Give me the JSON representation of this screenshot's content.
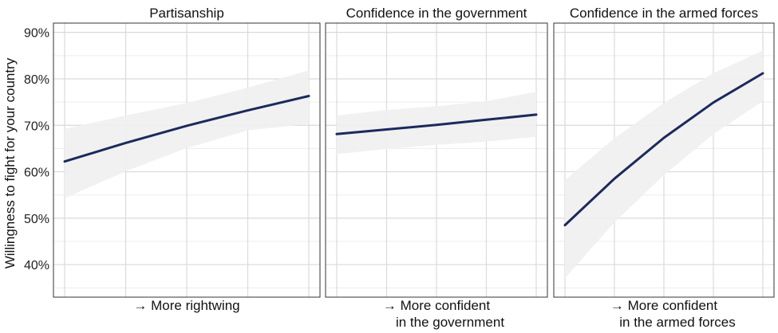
{
  "chart_data": {
    "type": "line",
    "ylabel": "Willingness to fight for your country",
    "ylim": [
      0.33,
      0.92
    ],
    "yticks": [
      "40%",
      "50%",
      "60%",
      "70%",
      "80%",
      "90%"
    ],
    "ytick_values": [
      0.4,
      0.5,
      0.6,
      0.7,
      0.8,
      0.9
    ],
    "grid": true,
    "line_color": "#1b2a5c",
    "band_color": "#efefef",
    "panels": [
      {
        "title": "Partisanship",
        "xlabel": [
          "→ More rightwing",
          ""
        ],
        "xlim": [
          0,
          1
        ],
        "x": [
          0,
          0.25,
          0.5,
          0.75,
          1
        ],
        "y": [
          0.622,
          0.662,
          0.699,
          0.732,
          0.763
        ],
        "lower": [
          0.543,
          0.601,
          0.651,
          0.689,
          0.703
        ],
        "upper": [
          0.692,
          0.721,
          0.748,
          0.781,
          0.818
        ]
      },
      {
        "title": "Confidence in the government",
        "xlabel": [
          "→ More confident",
          "in the government"
        ],
        "xlim": [
          0,
          1
        ],
        "x": [
          0,
          0.25,
          0.5,
          0.75,
          1
        ],
        "y": [
          0.681,
          0.691,
          0.701,
          0.712,
          0.723
        ],
        "lower": [
          0.638,
          0.649,
          0.658,
          0.665,
          0.675
        ],
        "upper": [
          0.721,
          0.733,
          0.741,
          0.752,
          0.772
        ]
      },
      {
        "title": "Confidence in the armed forces",
        "xlabel": [
          "→ More confident",
          "in the armed forces"
        ],
        "xlim": [
          0,
          1
        ],
        "x": [
          0,
          0.25,
          0.5,
          0.75,
          1
        ],
        "y": [
          0.485,
          0.585,
          0.673,
          0.749,
          0.812
        ],
        "lower": [
          0.371,
          0.491,
          0.593,
          0.681,
          0.752
        ],
        "upper": [
          0.582,
          0.672,
          0.748,
          0.812,
          0.861
        ]
      }
    ]
  }
}
